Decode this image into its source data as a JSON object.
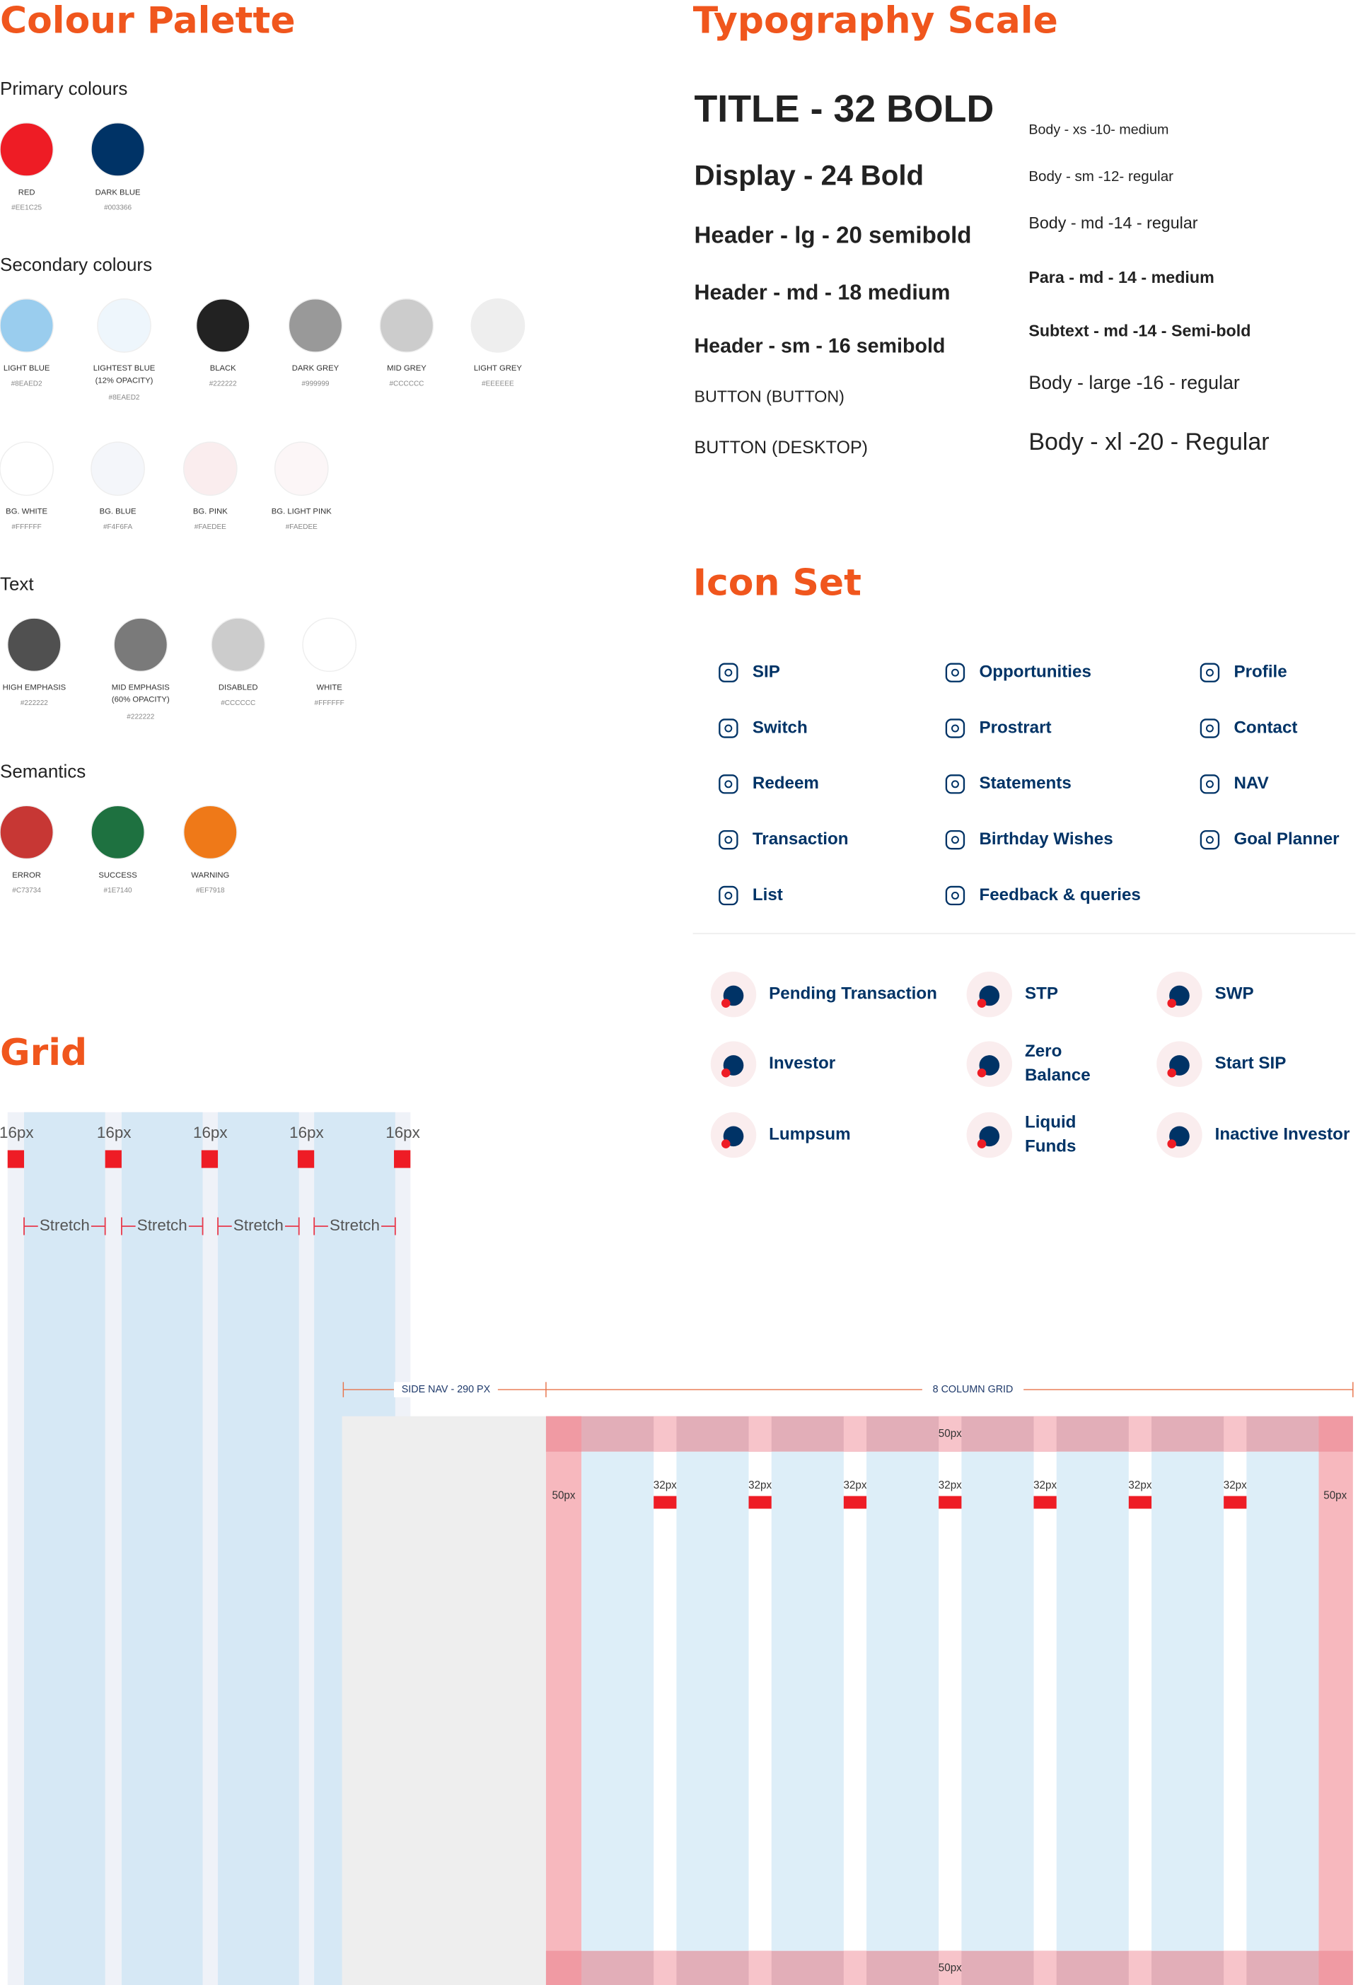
{
  "palette": {
    "title": "Colour Palette",
    "groups": [
      {
        "title": "Primary colours",
        "swatches": [
          {
            "name": [
              "RED"
            ],
            "hex": "#EE1C25",
            "color": "#EE1C25"
          },
          {
            "name": [
              "DARK BLUE"
            ],
            "hex": "#003366",
            "color": "#003366"
          }
        ]
      },
      {
        "title": "Secondary colours",
        "swatches": [
          {
            "name": [
              "LIGHT BLUE"
            ],
            "hex": "#8EAED2",
            "color": "#9ACDEE"
          },
          {
            "name": [
              "LIGHTEST BLUE",
              "(12% OPACITY)"
            ],
            "hex": "#8EAED2",
            "color": "#EEF6FC"
          },
          {
            "name": [
              "BLACK"
            ],
            "hex": "#222222",
            "color": "#222222"
          },
          {
            "name": [
              "DARK GREY"
            ],
            "hex": "#999999",
            "color": "#999999"
          },
          {
            "name": [
              "MID GREY"
            ],
            "hex": "#CCCCCC",
            "color": "#CCCCCC"
          },
          {
            "name": [
              "LIGHT GREY"
            ],
            "hex": "#EEEEEE",
            "color": "#EEEEEE"
          },
          {
            "name": [
              "BG. WHITE"
            ],
            "hex": "#FFFFFF",
            "color": "#FFFFFF"
          },
          {
            "name": [
              "BG. BLUE"
            ],
            "hex": "#F4F6FA",
            "color": "#F4F6FA"
          },
          {
            "name": [
              "BG. PINK"
            ],
            "hex": "#FAEDEE",
            "color": "#FAEDEE"
          },
          {
            "name": [
              "BG. LIGHT PINK"
            ],
            "hex": "#FAEDEE",
            "color": "#FCF6F7"
          }
        ]
      },
      {
        "title": "Text",
        "swatches": [
          {
            "name": [
              "HIGH EMPHASIS"
            ],
            "hex": "#222222",
            "color": "#505050"
          },
          {
            "name": [
              "MID EMPHASIS",
              "(60% OPACITY)"
            ],
            "hex": "#222222",
            "color": "#7A7A7A"
          },
          {
            "name": [
              "DISABLED"
            ],
            "hex": "#CCCCCC",
            "color": "#CCCCCC"
          },
          {
            "name": [
              "WHITE"
            ],
            "hex": "#FFFFFF",
            "color": "#FFFFFF"
          }
        ]
      },
      {
        "title": "Semantics",
        "swatches": [
          {
            "name": [
              "ERROR"
            ],
            "hex": "#C73734",
            "color": "#C73734"
          },
          {
            "name": [
              "SUCCESS"
            ],
            "hex": "#1E7140",
            "color": "#1E7140"
          },
          {
            "name": [
              "WARNING"
            ],
            "hex": "#EF7918",
            "color": "#EF7918"
          }
        ]
      }
    ]
  },
  "typography": {
    "title": "Typography Scale",
    "left": [
      "TITLE - 32 BOLD",
      "Display - 24 Bold",
      "Header -  lg - 20 semibold",
      "Header - md - 18 medium",
      "Header - sm - 16 semibold",
      "BUTTON (BUTTON)",
      "BUTTON (DESKTOP)"
    ],
    "right": [
      "Body - xs -10- medium",
      "Body - sm -12- regular",
      "Body - md -14 - regular",
      "Para - md - 14 - medium",
      "Subtext - md -14 - Semi-bold",
      "Body - large -16 - regular",
      "Body - xl -20 - Regular"
    ]
  },
  "icons": {
    "title": "Icon Set",
    "columns": [
      [
        "SIP",
        "Switch",
        "Redeem",
        "Transaction",
        "List"
      ],
      [
        "Opportunities",
        "Prostrart",
        "Statements",
        "Birthday Wishes",
        "Feedback & queries"
      ],
      [
        "Profile",
        "Contact",
        "NAV",
        "Goal Planner"
      ]
    ],
    "illustrated": [
      [
        [
          "Pending Transaction"
        ],
        [
          "STP"
        ],
        [
          "SWP"
        ]
      ],
      [
        [
          "Investor"
        ],
        [
          "Zero",
          "Balance"
        ],
        [
          "Start SIP"
        ]
      ],
      [
        [
          "Lumpsum"
        ],
        [
          "Liquid",
          "Funds"
        ],
        [
          "Inactive Investor"
        ]
      ]
    ]
  },
  "grid": {
    "title": "Grid",
    "mobile_gutter_labels": [
      "16px",
      "16px",
      "16px",
      "16px",
      "16px"
    ],
    "mobile_column_labels": [
      "Stretch",
      "Stretch",
      "Stretch",
      "Stretch"
    ],
    "side_nav_label": "SIDE NAV - 290 PX",
    "column_grid_label": "8 COLUMN GRID",
    "margin_labels": [
      "50px",
      "50px",
      "50px",
      "50px"
    ],
    "desktop_gutter_labels": [
      "32px",
      "32px",
      "32px",
      "32px",
      "32px",
      "32px",
      "32px"
    ]
  }
}
